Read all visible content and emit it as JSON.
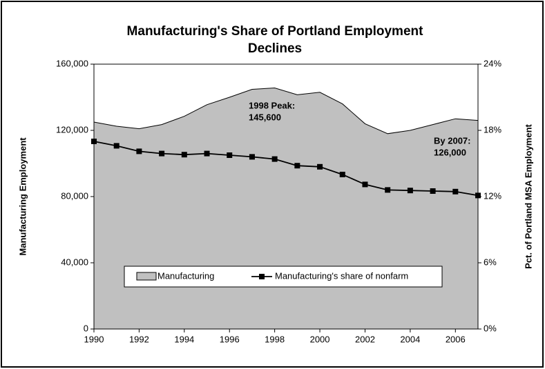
{
  "chart_data": {
    "type": "area-line",
    "title": [
      "Manufacturing's Share of Portland Employment",
      "Declines"
    ],
    "y_label": "Manufacturing Employment",
    "y2_label": "Pct. of Portland MSA Employment",
    "x": [
      1990,
      1991,
      1992,
      1993,
      1994,
      1995,
      1996,
      1997,
      1998,
      1999,
      2000,
      2001,
      2002,
      2003,
      2004,
      2005,
      2006,
      2007
    ],
    "xlim": [
      1990,
      2007
    ],
    "xticks": [
      1990,
      1992,
      1994,
      1996,
      1998,
      2000,
      2002,
      2004,
      2006
    ],
    "ylim": [
      0,
      160000
    ],
    "yticks": [
      0,
      {
        "value": 40000,
        "label": "40,000"
      },
      {
        "value": 80000,
        "label": "80,000"
      },
      {
        "value": 120000,
        "label": "120,000"
      },
      {
        "value": 160000,
        "label": "160,000"
      }
    ],
    "y2lim": [
      0,
      24
    ],
    "y2ticks": [
      {
        "value": 0,
        "label": "0%"
      },
      {
        "value": 6,
        "label": "6%"
      },
      {
        "value": 12,
        "label": "12%"
      },
      {
        "value": 18,
        "label": "18%"
      },
      {
        "value": 24,
        "label": "24%"
      }
    ],
    "series": [
      {
        "name": "Manufacturing",
        "kind": "area",
        "color": "#c0c0c0",
        "axis": "y",
        "values": [
          125000,
          122500,
          121000,
          123500,
          128500,
          135500,
          140000,
          144800,
          145600,
          141500,
          143000,
          136000,
          124000,
          118000,
          120000,
          123500,
          127000,
          126000
        ]
      },
      {
        "name": "Manufacturing's share of nonfarm",
        "kind": "line",
        "color": "#000000",
        "axis": "y2",
        "values": [
          17.0,
          16.6,
          16.1,
          15.9,
          15.8,
          15.9,
          15.75,
          15.6,
          15.4,
          14.8,
          14.7,
          14.0,
          13.1,
          12.6,
          12.55,
          12.5,
          12.45,
          12.1
        ]
      }
    ],
    "annotations": [
      {
        "lines": [
          "1998 Peak:",
          "145,600"
        ]
      },
      {
        "lines": [
          "By 2007:",
          "126,000"
        ]
      }
    ]
  }
}
